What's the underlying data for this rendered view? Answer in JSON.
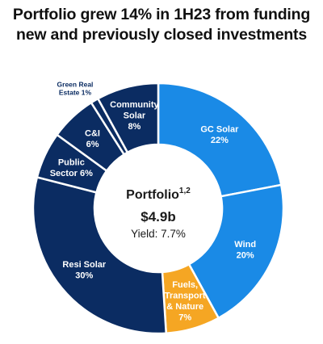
{
  "title_line1": "Portfolio grew 14% in 1H23 from funding",
  "title_line2": "new and previously closed investments",
  "chart_data": {
    "type": "pie",
    "donut": true,
    "center": {
      "label": "Portfolio",
      "superscript": "1,2",
      "value": "$4.9b",
      "yield": "Yield: 7.7%"
    },
    "slices": [
      {
        "name": "GC Solar",
        "value": 22,
        "value_label": "22%",
        "color": "#1a8ae6",
        "lines": [
          "GC Solar",
          "22%"
        ]
      },
      {
        "name": "Wind",
        "value": 20,
        "value_label": "20%",
        "color": "#1a8ae6",
        "lines": [
          "Wind",
          "20%"
        ]
      },
      {
        "name": "Fuels, Transport & Nature",
        "value": 7,
        "value_label": "7%",
        "color": "#f5a623",
        "lines": [
          "Fuels,",
          "Transport",
          "& Nature",
          "7%"
        ]
      },
      {
        "name": "Resi Solar",
        "value": 30,
        "value_label": "30%",
        "color": "#0b2c62",
        "lines": [
          "Resi Solar",
          "30%"
        ]
      },
      {
        "name": "Public Sector",
        "value": 6,
        "value_label": "6%",
        "color": "#0b2c62",
        "lines": [
          "Public",
          "Sector 6%"
        ]
      },
      {
        "name": "C&I",
        "value": 6,
        "value_label": "6%",
        "color": "#0b2c62",
        "lines": [
          "C&I",
          "6%"
        ]
      },
      {
        "name": "Green Real Estate",
        "value": 1,
        "value_label": "1%",
        "color": "#0b2c62",
        "lines": [
          "Green Real",
          "Estate 1%"
        ],
        "outside": true
      },
      {
        "name": "Community Solar",
        "value": 8,
        "value_label": "8%",
        "color": "#0b2c62",
        "lines": [
          "Community",
          "Solar",
          "8%"
        ]
      }
    ]
  }
}
